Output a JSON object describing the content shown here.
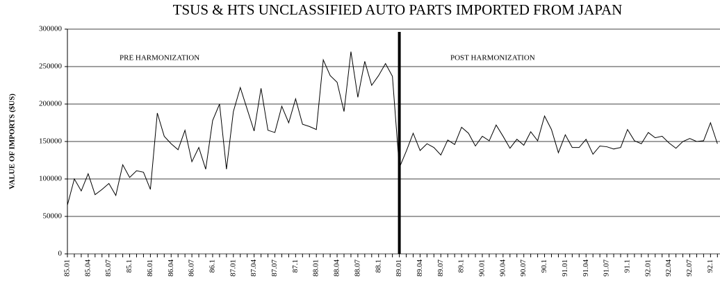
{
  "chart_data": {
    "type": "line",
    "title": "TSUS & HTS UNCLASSIFIED AUTO PARTS IMPORTED FROM JAPAN",
    "y_label": "VALUE OF IMPORTS ($US)",
    "annotations": [
      "PRE HARMONIZATION",
      "POST HARMONIZATION"
    ],
    "divider": "89.01",
    "categories": [
      "85.01",
      null,
      null,
      "85.04",
      null,
      null,
      "85.07",
      null,
      null,
      "85.1",
      null,
      null,
      "86.01",
      null,
      null,
      "86.04",
      null,
      null,
      "86.07",
      null,
      null,
      "86.1",
      null,
      null,
      "87.01",
      null,
      null,
      "87.04",
      null,
      null,
      "87.07",
      null,
      null,
      "87.1",
      null,
      null,
      "88.01",
      null,
      null,
      "88.04",
      null,
      null,
      "88.07",
      null,
      null,
      "88.1",
      null,
      null,
      "89.01",
      null,
      null,
      "89.04",
      null,
      null,
      "89.07",
      null,
      null,
      "89.1",
      null,
      null,
      "90.01",
      null,
      null,
      "90.04",
      null,
      null,
      "90.07",
      null,
      null,
      "90.1",
      null,
      null,
      "91.01",
      null,
      null,
      "91.04",
      null,
      null,
      "91.07",
      null,
      null,
      "91.1",
      null,
      null,
      "92.01",
      null,
      null,
      "92.04",
      null,
      null,
      "92.07",
      null,
      null,
      "92.1",
      null
    ],
    "values": [
      65000,
      100000,
      84000,
      107000,
      79000,
      86000,
      94000,
      78000,
      119000,
      102000,
      111000,
      109000,
      86000,
      188000,
      157000,
      147000,
      139000,
      165000,
      123000,
      142000,
      113000,
      178000,
      200000,
      113000,
      190000,
      222000,
      193000,
      164000,
      221000,
      165000,
      162000,
      197000,
      175000,
      207000,
      173000,
      170000,
      166000,
      259000,
      238000,
      229000,
      190000,
      270000,
      209000,
      257000,
      225000,
      238000,
      254000,
      237000,
      115000,
      137000,
      161000,
      138000,
      147000,
      142000,
      132000,
      152000,
      146000,
      169000,
      161000,
      144000,
      157000,
      151000,
      172000,
      157000,
      141000,
      153000,
      145000,
      163000,
      151000,
      184000,
      166000,
      135000,
      159000,
      142000,
      142000,
      153000,
      133000,
      144000,
      143000,
      140000,
      142000,
      166000,
      151000,
      147000,
      162000,
      155000,
      157000,
      148000,
      141000,
      150000,
      154000,
      150000,
      151000,
      175000,
      147000
    ],
    "color": "#000000",
    "ylim": [
      0,
      300000
    ],
    "yticks": [
      0,
      50000,
      100000,
      150000,
      200000,
      250000,
      300000
    ],
    "grid": true
  }
}
